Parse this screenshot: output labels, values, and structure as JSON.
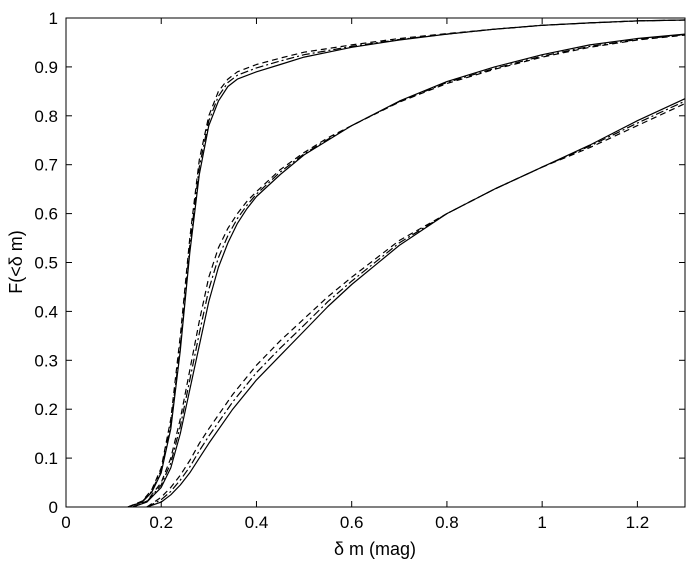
{
  "chart_data": {
    "type": "line",
    "title": "",
    "xlabel": "δ m (mag)",
    "ylabel": "F(<δ m)",
    "xlim": [
      0,
      1.3
    ],
    "ylim": [
      0,
      1
    ],
    "xticks": [
      "0",
      "0.2",
      "0.4",
      "0.6",
      "0.8",
      "1",
      "1.2"
    ],
    "yticks": [
      "0",
      "0.1",
      "0.2",
      "0.3",
      "0.4",
      "0.5",
      "0.6",
      "0.7",
      "0.8",
      "0.9",
      "1"
    ],
    "grid": false,
    "legend": "none",
    "series": [
      {
        "group": 1,
        "style": "solid",
        "color": "#000000",
        "x": [
          0.13,
          0.16,
          0.18,
          0.2,
          0.22,
          0.24,
          0.26,
          0.28,
          0.3,
          0.32,
          0.34,
          0.36,
          0.4,
          0.45,
          0.5,
          0.6,
          0.7,
          0.8,
          0.9,
          1.0,
          1.1,
          1.2,
          1.3
        ],
        "y": [
          0,
          0.01,
          0.03,
          0.07,
          0.16,
          0.32,
          0.52,
          0.68,
          0.78,
          0.83,
          0.86,
          0.875,
          0.89,
          0.905,
          0.92,
          0.94,
          0.955,
          0.967,
          0.977,
          0.985,
          0.99,
          0.994,
          0.996
        ]
      },
      {
        "group": 1,
        "style": "dashed",
        "color": "#000000",
        "x": [
          0.13,
          0.16,
          0.18,
          0.2,
          0.22,
          0.24,
          0.26,
          0.28,
          0.3,
          0.32,
          0.34,
          0.36,
          0.4,
          0.45,
          0.5,
          0.6,
          0.7,
          0.8,
          0.9,
          1.0,
          1.1,
          1.2,
          1.3
        ],
        "y": [
          0,
          0.012,
          0.035,
          0.08,
          0.18,
          0.35,
          0.55,
          0.71,
          0.8,
          0.85,
          0.875,
          0.89,
          0.905,
          0.918,
          0.93,
          0.945,
          0.958,
          0.968,
          0.977,
          0.985,
          0.99,
          0.994,
          0.996
        ]
      },
      {
        "group": 1,
        "style": "dashdot",
        "color": "#000000",
        "x": [
          0.13,
          0.16,
          0.18,
          0.2,
          0.22,
          0.24,
          0.26,
          0.28,
          0.3,
          0.32,
          0.34,
          0.36,
          0.4,
          0.45,
          0.5,
          0.6,
          0.7,
          0.8,
          0.9,
          1.0,
          1.1,
          1.2,
          1.3
        ],
        "y": [
          0,
          0.011,
          0.032,
          0.075,
          0.17,
          0.33,
          0.535,
          0.695,
          0.79,
          0.84,
          0.868,
          0.883,
          0.898,
          0.912,
          0.925,
          0.942,
          0.956,
          0.967,
          0.977,
          0.985,
          0.99,
          0.994,
          0.996
        ]
      },
      {
        "group": 2,
        "style": "solid",
        "color": "#000000",
        "x": [
          0.14,
          0.17,
          0.2,
          0.22,
          0.24,
          0.26,
          0.28,
          0.3,
          0.32,
          0.34,
          0.36,
          0.38,
          0.4,
          0.45,
          0.5,
          0.55,
          0.6,
          0.7,
          0.8,
          0.9,
          1.0,
          1.1,
          1.2,
          1.3
        ],
        "y": [
          0,
          0.01,
          0.04,
          0.08,
          0.15,
          0.24,
          0.33,
          0.42,
          0.49,
          0.54,
          0.58,
          0.61,
          0.635,
          0.68,
          0.72,
          0.75,
          0.78,
          0.83,
          0.87,
          0.9,
          0.925,
          0.945,
          0.958,
          0.967
        ]
      },
      {
        "group": 2,
        "style": "dashed",
        "color": "#000000",
        "x": [
          0.14,
          0.17,
          0.2,
          0.22,
          0.24,
          0.26,
          0.28,
          0.3,
          0.32,
          0.34,
          0.36,
          0.38,
          0.4,
          0.45,
          0.5,
          0.55,
          0.6,
          0.7,
          0.8,
          0.9,
          1.0,
          1.1,
          1.2,
          1.3
        ],
        "y": [
          0,
          0.012,
          0.05,
          0.1,
          0.18,
          0.28,
          0.38,
          0.47,
          0.53,
          0.57,
          0.6,
          0.625,
          0.645,
          0.69,
          0.725,
          0.755,
          0.78,
          0.828,
          0.866,
          0.895,
          0.92,
          0.94,
          0.955,
          0.965
        ]
      },
      {
        "group": 2,
        "style": "dashdot",
        "color": "#000000",
        "x": [
          0.14,
          0.17,
          0.2,
          0.22,
          0.24,
          0.26,
          0.28,
          0.3,
          0.32,
          0.34,
          0.36,
          0.38,
          0.4,
          0.45,
          0.5,
          0.55,
          0.6,
          0.7,
          0.8,
          0.9,
          1.0,
          1.1,
          1.2,
          1.3
        ],
        "y": [
          0,
          0.011,
          0.045,
          0.09,
          0.165,
          0.26,
          0.355,
          0.445,
          0.51,
          0.555,
          0.59,
          0.617,
          0.64,
          0.685,
          0.722,
          0.752,
          0.78,
          0.829,
          0.868,
          0.897,
          0.922,
          0.942,
          0.956,
          0.966
        ]
      },
      {
        "group": 3,
        "style": "solid",
        "color": "#000000",
        "x": [
          0.17,
          0.2,
          0.22,
          0.24,
          0.26,
          0.28,
          0.3,
          0.35,
          0.4,
          0.45,
          0.5,
          0.55,
          0.6,
          0.7,
          0.8,
          0.9,
          1.0,
          1.1,
          1.2,
          1.3
        ],
        "y": [
          0,
          0.01,
          0.025,
          0.045,
          0.07,
          0.1,
          0.13,
          0.2,
          0.26,
          0.31,
          0.36,
          0.41,
          0.455,
          0.535,
          0.6,
          0.65,
          0.695,
          0.74,
          0.79,
          0.835
        ]
      },
      {
        "group": 3,
        "style": "dashed",
        "color": "#000000",
        "x": [
          0.17,
          0.2,
          0.22,
          0.24,
          0.26,
          0.28,
          0.3,
          0.35,
          0.4,
          0.45,
          0.5,
          0.55,
          0.6,
          0.7,
          0.8,
          0.9,
          1.0,
          1.1,
          1.2,
          1.3
        ],
        "y": [
          0,
          0.02,
          0.04,
          0.065,
          0.095,
          0.13,
          0.16,
          0.23,
          0.29,
          0.34,
          0.385,
          0.43,
          0.47,
          0.545,
          0.6,
          0.65,
          0.695,
          0.735,
          0.78,
          0.825
        ]
      },
      {
        "group": 3,
        "style": "dashdot",
        "color": "#000000",
        "x": [
          0.17,
          0.2,
          0.22,
          0.24,
          0.26,
          0.28,
          0.3,
          0.35,
          0.4,
          0.45,
          0.5,
          0.55,
          0.6,
          0.7,
          0.8,
          0.9,
          1.0,
          1.1,
          1.2,
          1.3
        ],
        "y": [
          0,
          0.015,
          0.032,
          0.055,
          0.082,
          0.115,
          0.145,
          0.215,
          0.275,
          0.325,
          0.372,
          0.42,
          0.462,
          0.54,
          0.6,
          0.65,
          0.695,
          0.738,
          0.785,
          0.83
        ]
      }
    ]
  }
}
